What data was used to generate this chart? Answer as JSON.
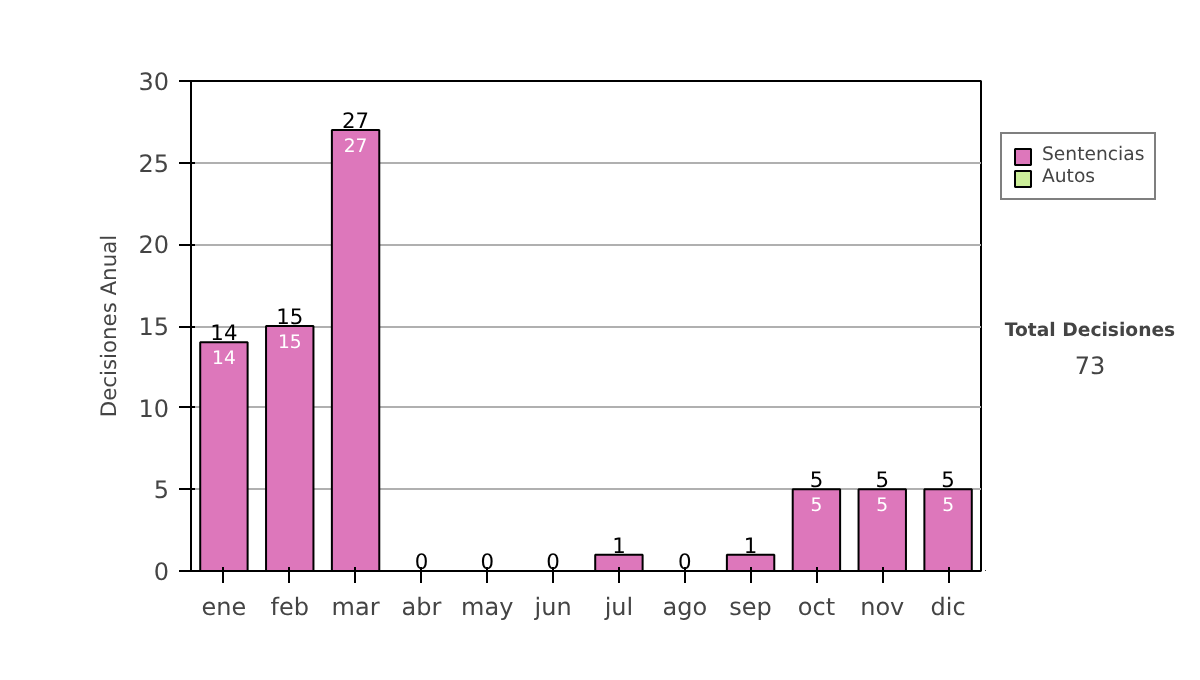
{
  "chart_data": {
    "type": "bar",
    "stacked": true,
    "ylabel": "Decisiones Anual",
    "categories": [
      "ene",
      "feb",
      "mar",
      "abr",
      "may",
      "jun",
      "jul",
      "ago",
      "sep",
      "oct",
      "nov",
      "dic"
    ],
    "series": [
      {
        "name": "Sentencias",
        "color": "#dd77bb",
        "values": [
          14,
          15,
          27,
          0,
          0,
          0,
          1,
          0,
          1,
          5,
          5,
          5
        ],
        "value_labels": [
          "14",
          "15",
          "27",
          null,
          null,
          null,
          null,
          null,
          null,
          "5",
          "5",
          "5"
        ]
      },
      {
        "name": "Autos",
        "color": "#ccee99",
        "values": [
          0,
          0,
          0,
          0,
          0,
          0,
          0,
          0,
          0,
          0,
          0,
          0
        ]
      }
    ],
    "totals": [
      "14",
      "15",
      "27",
      "0",
      "0",
      "0",
      "1",
      "0",
      "1",
      "5",
      "5",
      "5"
    ],
    "ylim": [
      0,
      30
    ],
    "yticks": [
      0,
      5,
      10,
      15,
      20,
      25,
      30
    ],
    "grid": "y",
    "legend": "right",
    "annotations": [
      "Total Decisiones",
      "73"
    ]
  }
}
